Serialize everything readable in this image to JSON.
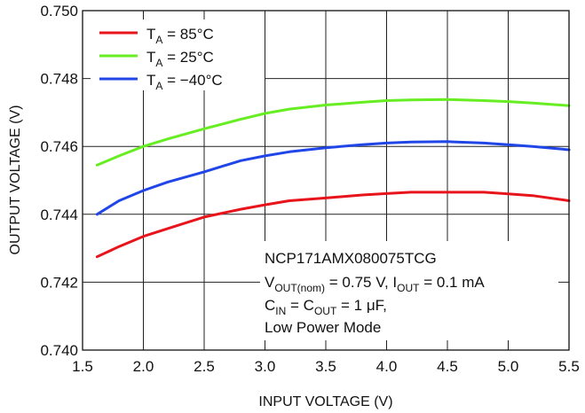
{
  "chart_data": {
    "type": "line",
    "title": "",
    "xlabel": "INPUT VOLTAGE (V)",
    "ylabel": "OUTPUT VOLTAGE (V)",
    "xlim": [
      1.5,
      5.5
    ],
    "ylim": [
      0.74,
      0.75
    ],
    "xticks": [
      "1.5",
      "2.0",
      "2.5",
      "3.0",
      "3.5",
      "4.0",
      "4.5",
      "5.0",
      "5.5"
    ],
    "yticks": [
      "0.740",
      "0.742",
      "0.744",
      "0.746",
      "0.748",
      "0.750"
    ],
    "grid": true,
    "legend_position": "top-left",
    "series": [
      {
        "name": "TA = 85°C",
        "label_main": "T",
        "label_sub": "A",
        "label_rest": " = 85°C",
        "color": "#e8141c",
        "points": [
          [
            1.62,
            0.74275
          ],
          [
            1.8,
            0.74305
          ],
          [
            2.0,
            0.74335
          ],
          [
            2.2,
            0.74358
          ],
          [
            2.5,
            0.74392
          ],
          [
            2.8,
            0.74415
          ],
          [
            3.0,
            0.74428
          ],
          [
            3.2,
            0.7444
          ],
          [
            3.5,
            0.74448
          ],
          [
            3.8,
            0.74457
          ],
          [
            4.0,
            0.74461
          ],
          [
            4.2,
            0.74465
          ],
          [
            4.5,
            0.74465
          ],
          [
            4.8,
            0.74465
          ],
          [
            5.0,
            0.7446
          ],
          [
            5.2,
            0.74455
          ],
          [
            5.5,
            0.7444
          ]
        ]
      },
      {
        "name": "TA = 25°C",
        "label_main": "T",
        "label_sub": "A",
        "label_rest": " = 25°C",
        "color": "#66ee22",
        "points": [
          [
            1.62,
            0.74545
          ],
          [
            1.8,
            0.74572
          ],
          [
            2.0,
            0.746
          ],
          [
            2.2,
            0.74622
          ],
          [
            2.5,
            0.74652
          ],
          [
            2.8,
            0.7468
          ],
          [
            3.0,
            0.74697
          ],
          [
            3.2,
            0.7471
          ],
          [
            3.5,
            0.74722
          ],
          [
            3.8,
            0.7473
          ],
          [
            4.0,
            0.74735
          ],
          [
            4.2,
            0.74737
          ],
          [
            4.5,
            0.74738
          ],
          [
            4.8,
            0.74735
          ],
          [
            5.0,
            0.74732
          ],
          [
            5.2,
            0.74728
          ],
          [
            5.5,
            0.7472
          ]
        ]
      },
      {
        "name": "TA = −40°C",
        "label_main": "T",
        "label_sub": "A",
        "label_rest": " = −40°C",
        "color": "#2046e8",
        "points": [
          [
            1.62,
            0.744
          ],
          [
            1.8,
            0.7444
          ],
          [
            2.0,
            0.7447
          ],
          [
            2.2,
            0.74495
          ],
          [
            2.5,
            0.74525
          ],
          [
            2.8,
            0.74558
          ],
          [
            3.0,
            0.74572
          ],
          [
            3.2,
            0.74584
          ],
          [
            3.5,
            0.74596
          ],
          [
            3.8,
            0.74605
          ],
          [
            4.0,
            0.7461
          ],
          [
            4.2,
            0.74613
          ],
          [
            4.5,
            0.74614
          ],
          [
            4.8,
            0.7461
          ],
          [
            5.0,
            0.74605
          ],
          [
            5.2,
            0.746
          ],
          [
            5.5,
            0.7459
          ]
        ]
      }
    ],
    "annotation": {
      "line1": "NCP171AMX080075TCG",
      "line2_v": "V",
      "line2_vsub": "OUT(nom)",
      "line2_mid": " = 0.75 V, I",
      "line2_isub": "OUT",
      "line2_end": " = 0.1 mA",
      "line3_c": "C",
      "line3_csub": "IN",
      "line3_mid": " = C",
      "line3_osub": "OUT",
      "line3_end": " = 1 μF,",
      "line4": "Low Power Mode"
    }
  }
}
